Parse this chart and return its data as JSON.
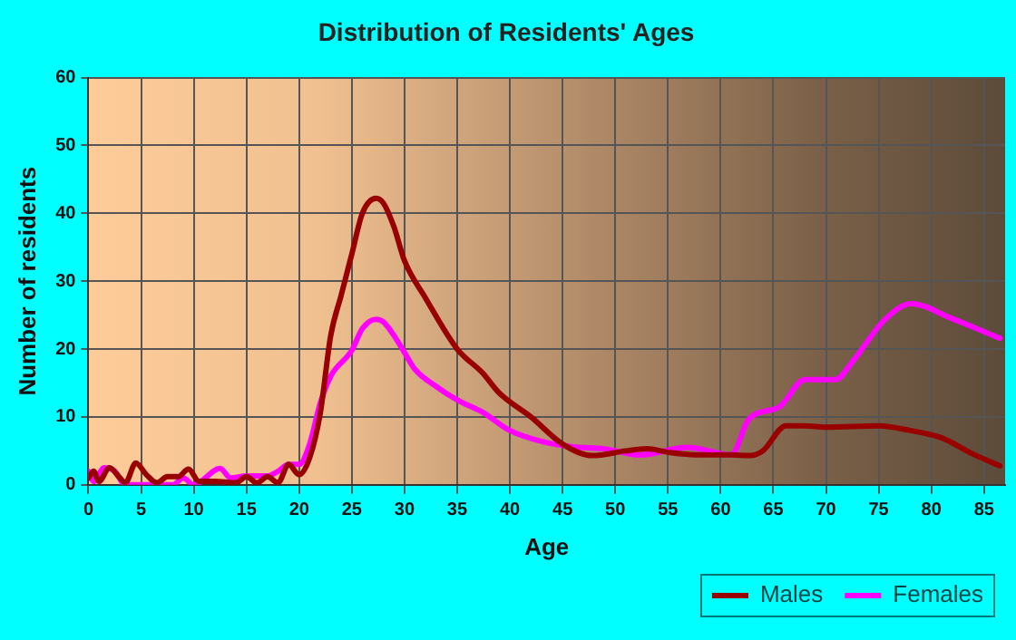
{
  "chart_data": {
    "type": "line",
    "title": "Distribution of Residents' Ages",
    "xlabel": "Age",
    "ylabel": "Number of residents",
    "xlim": [
      0,
      87
    ],
    "xticks": [
      0,
      5,
      10,
      15,
      20,
      25,
      30,
      35,
      40,
      45,
      50,
      55,
      60,
      65,
      70,
      75,
      80,
      85
    ],
    "ylim": [
      0,
      60
    ],
    "yticks": [
      0,
      10,
      20,
      30,
      40,
      50,
      60
    ],
    "grid": true,
    "legend": "bottom right",
    "marker": "none",
    "line_style": "solid",
    "series": [
      {
        "name": "Males",
        "color": "#990000",
        "x": [
          0,
          0.5,
          1,
          2,
          3,
          3.5,
          4.5,
          5.5,
          6.5,
          7.5,
          8.5,
          9.5,
          10.5,
          12,
          14,
          15,
          16,
          17,
          18,
          19,
          20,
          21,
          22,
          23,
          24,
          25,
          26,
          27.3,
          28,
          29,
          30,
          32,
          35,
          37.4,
          39,
          42,
          45,
          47.8,
          51,
          53,
          55,
          58,
          61,
          62.8,
          64,
          66.2,
          68,
          70,
          75,
          78,
          81,
          84,
          86.5
        ],
        "values": [
          1,
          2,
          0.5,
          2.5,
          1,
          0.3,
          3.2,
          1.5,
          0.3,
          1.2,
          1.2,
          2.3,
          0.5,
          0.5,
          0.3,
          1.2,
          0.3,
          1.2,
          0.3,
          3,
          1.5,
          4,
          10.5,
          22,
          28,
          34,
          40,
          42.2,
          41.5,
          38,
          33,
          27.5,
          20,
          16.5,
          13.5,
          10,
          6,
          4.3,
          5,
          5.3,
          4.8,
          4.4,
          4.4,
          4.3,
          5,
          8.7,
          8.7,
          8.5,
          8.7,
          8,
          6.9,
          4.5,
          2.8
        ]
      },
      {
        "name": "Females",
        "color": "#ff00ff",
        "x": [
          0,
          0.5,
          1.5,
          2.5,
          3.5,
          5,
          8,
          9,
          10,
          12.5,
          13.5,
          15,
          17,
          18,
          19,
          20,
          21,
          22,
          23,
          25,
          26,
          27.3,
          28,
          29,
          30,
          31,
          33,
          35,
          37.4,
          40,
          43,
          46,
          49,
          52.3,
          56.9,
          61,
          62.7,
          65.6,
          68,
          70.9,
          72.6,
          75.5,
          78.1,
          81.8,
          86.5
        ],
        "values": [
          2,
          0.5,
          2.5,
          2,
          0,
          0,
          0,
          1,
          0,
          2.4,
          1,
          1.3,
          1.3,
          2,
          3,
          3,
          6,
          12,
          16,
          19.8,
          23,
          24.4,
          24,
          22,
          19.5,
          17,
          14.5,
          12.5,
          10.7,
          8,
          6.4,
          5.6,
          5.3,
          4.4,
          5.5,
          4.4,
          9.7,
          11.5,
          15.5,
          15.5,
          18.3,
          24.2,
          26.7,
          24.6,
          21.6
        ]
      }
    ]
  }
}
